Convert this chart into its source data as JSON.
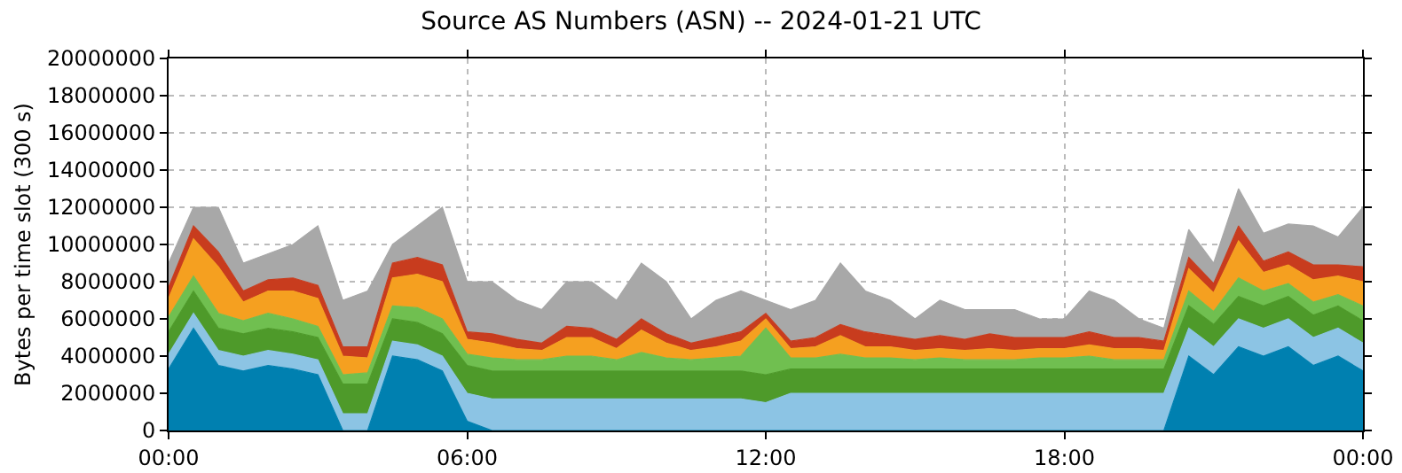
{
  "chart_data": {
    "type": "area",
    "title": "Source AS Numbers (ASN) -- 2024-01-21 UTC",
    "ylabel": "Bytes per time slot (300 s)",
    "stacked": true,
    "grid": true,
    "x": [
      0,
      0.5,
      1,
      1.5,
      2,
      2.5,
      3,
      3.5,
      4,
      4.5,
      5,
      5.5,
      6,
      6.5,
      7,
      7.5,
      8,
      8.5,
      9,
      9.5,
      10,
      10.5,
      11,
      11.5,
      12,
      12.5,
      13,
      13.5,
      14,
      14.5,
      15,
      15.5,
      16,
      16.5,
      17,
      17.5,
      18,
      18.5,
      19,
      19.5,
      20,
      20.5,
      21,
      21.5,
      22,
      22.5,
      23,
      23.5,
      24
    ],
    "xlim": [
      0,
      24
    ],
    "xticks": [
      {
        "value": 0,
        "label": "00:00"
      },
      {
        "value": 6,
        "label": "06:00"
      },
      {
        "value": 12,
        "label": "12:00"
      },
      {
        "value": 18,
        "label": "18:00"
      },
      {
        "value": 24,
        "label": "00:00"
      }
    ],
    "ylim": [
      0,
      20000000
    ],
    "yticks": [
      0,
      2000000,
      4000000,
      6000000,
      8000000,
      10000000,
      12000000,
      14000000,
      16000000,
      18000000,
      20000000
    ],
    "series": [
      {
        "color": "#0080b0",
        "values": [
          3300000,
          5500000,
          3500000,
          3200000,
          3500000,
          3300000,
          3000000,
          0,
          0,
          4000000,
          3800000,
          3200000,
          500000,
          0,
          0,
          0,
          0,
          0,
          0,
          0,
          0,
          0,
          0,
          0,
          0,
          0,
          0,
          0,
          0,
          0,
          0,
          0,
          0,
          0,
          0,
          0,
          0,
          0,
          0,
          0,
          0,
          4000000,
          3000000,
          4500000,
          4000000,
          4500000,
          3500000,
          4000000,
          3200000
        ]
      },
      {
        "color": "#8cc4e4",
        "values": [
          800000,
          800000,
          800000,
          800000,
          800000,
          800000,
          800000,
          900000,
          900000,
          800000,
          800000,
          800000,
          1500000,
          1700000,
          1700000,
          1700000,
          1700000,
          1700000,
          1700000,
          1700000,
          1700000,
          1700000,
          1700000,
          1700000,
          1500000,
          2000000,
          2000000,
          2000000,
          2000000,
          2000000,
          2000000,
          2000000,
          2000000,
          2000000,
          2000000,
          2000000,
          2000000,
          2000000,
          2000000,
          2000000,
          2000000,
          1500000,
          1500000,
          1500000,
          1500000,
          1500000,
          1500000,
          1500000,
          1500000
        ]
      },
      {
        "color": "#4e9a2a",
        "values": [
          1200000,
          1200000,
          1200000,
          1200000,
          1200000,
          1200000,
          1200000,
          1600000,
          1600000,
          1200000,
          1200000,
          1200000,
          1500000,
          1500000,
          1500000,
          1500000,
          1500000,
          1500000,
          1500000,
          1500000,
          1500000,
          1500000,
          1500000,
          1500000,
          1500000,
          1300000,
          1300000,
          1300000,
          1300000,
          1300000,
          1300000,
          1300000,
          1300000,
          1300000,
          1300000,
          1300000,
          1300000,
          1300000,
          1300000,
          1300000,
          1300000,
          1200000,
          1200000,
          1200000,
          1200000,
          1200000,
          1200000,
          1200000,
          1200000
        ]
      },
      {
        "color": "#70bf50",
        "values": [
          800000,
          800000,
          800000,
          700000,
          800000,
          700000,
          600000,
          500000,
          600000,
          700000,
          800000,
          800000,
          600000,
          700000,
          600000,
          600000,
          800000,
          800000,
          600000,
          1000000,
          700000,
          600000,
          700000,
          800000,
          2500000,
          600000,
          600000,
          800000,
          600000,
          600000,
          500000,
          600000,
          500000,
          500000,
          500000,
          600000,
          600000,
          700000,
          500000,
          500000,
          500000,
          800000,
          700000,
          1000000,
          800000,
          700000,
          700000,
          600000,
          800000
        ]
      },
      {
        "color": "#f5a020",
        "values": [
          1000000,
          2000000,
          2500000,
          1000000,
          1200000,
          1500000,
          1500000,
          1000000,
          800000,
          1500000,
          1800000,
          2000000,
          800000,
          800000,
          600000,
          500000,
          1000000,
          1000000,
          600000,
          1200000,
          800000,
          500000,
          600000,
          800000,
          500000,
          500000,
          600000,
          1000000,
          600000,
          600000,
          500000,
          500000,
          500000,
          600000,
          500000,
          500000,
          500000,
          600000,
          600000,
          600000,
          500000,
          1200000,
          1000000,
          2000000,
          1000000,
          1000000,
          1200000,
          1000000,
          1300000
        ]
      },
      {
        "color": "#c83c1e",
        "values": [
          600000,
          700000,
          800000,
          600000,
          600000,
          700000,
          700000,
          500000,
          600000,
          800000,
          900000,
          900000,
          400000,
          500000,
          500000,
          400000,
          600000,
          500000,
          500000,
          600000,
          500000,
          400000,
          500000,
          500000,
          300000,
          400000,
          500000,
          600000,
          800000,
          600000,
          600000,
          700000,
          600000,
          800000,
          700000,
          600000,
          600000,
          700000,
          600000,
          600000,
          500000,
          600000,
          500000,
          800000,
          600000,
          700000,
          800000,
          600000,
          800000
        ]
      },
      {
        "color": "#a8a8a8",
        "values": [
          1300000,
          1000000,
          2400000,
          1500000,
          1400000,
          1800000,
          3200000,
          2500000,
          3000000,
          1000000,
          1700000,
          3100000,
          2700000,
          2800000,
          2100000,
          1800000,
          2400000,
          2500000,
          2100000,
          3000000,
          2800000,
          1300000,
          2000000,
          2200000,
          700000,
          1700000,
          2000000,
          3300000,
          2200000,
          1900000,
          1100000,
          1900000,
          1600000,
          1300000,
          1500000,
          1000000,
          1000000,
          2200000,
          2000000,
          1000000,
          700000,
          1500000,
          1100000,
          2000000,
          1500000,
          1500000,
          2100000,
          1500000,
          3200000
        ]
      }
    ]
  }
}
